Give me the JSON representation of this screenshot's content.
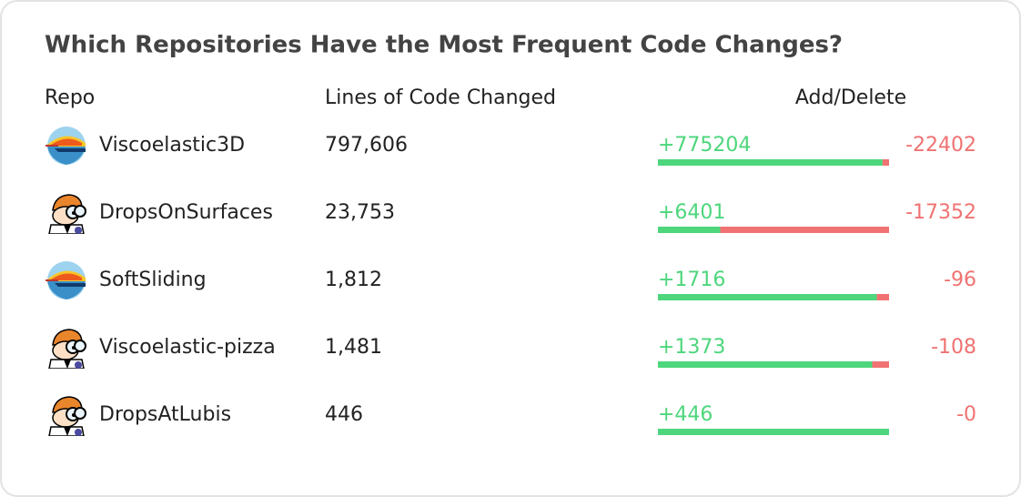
{
  "title": "Which Repositories Have the Most Frequent Code Changes?",
  "columns": [
    "Repo",
    "Lines of Code Changed",
    "Add/Delete"
  ],
  "rows": [
    {
      "repo": "Viscoelastic3D",
      "lines": "797,606",
      "additions": "+775204",
      "deletions": "-22402"
    },
    {
      "repo": "DropsOnSurfaces",
      "lines": "23,753",
      "additions": "+6401",
      "deletions": "-17352"
    },
    {
      "repo": "SoftSliding",
      "lines": "1,812",
      "additions": "+1716",
      "deletions": "-96"
    },
    {
      "repo": "Viscoelastic-pizza",
      "lines": "1,481",
      "additions": "+1373",
      "deletions": "-108"
    },
    {
      "repo": "DropsAtLubis",
      "lines": "446",
      "additions": "+446",
      "deletions": "-0"
    }
  ]
}
